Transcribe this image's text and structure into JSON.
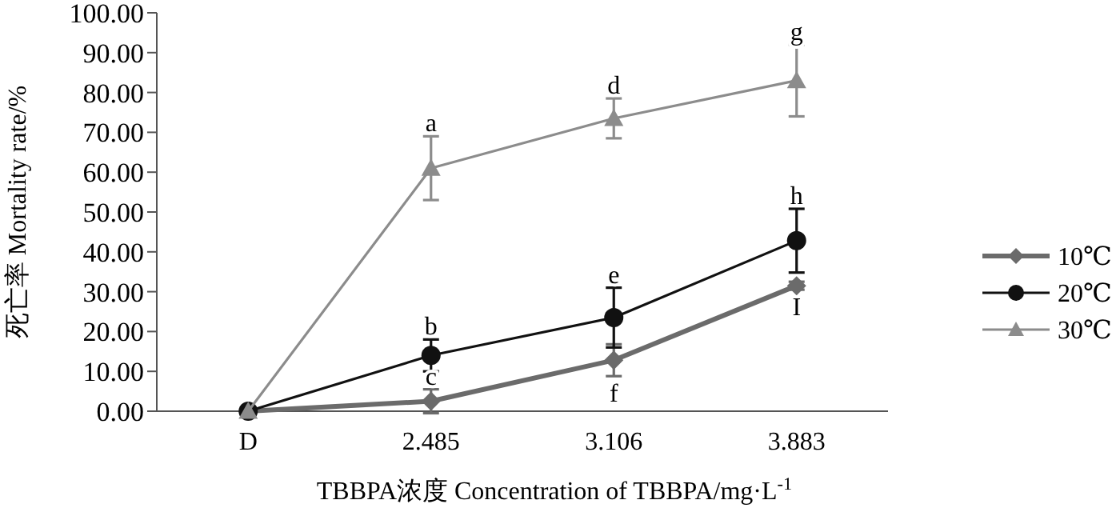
{
  "chart_data": {
    "type": "line",
    "xlabel": "TBBPA浓度 Concentration of TBBPA/mg·L$^{-1}$",
    "ylabel": "死亡率 Mortality rate/%",
    "categories": [
      "D",
      "2.485",
      "3.106",
      "3.883"
    ],
    "series": [
      {
        "name": "10℃",
        "color": "#6b6b6b",
        "marker": "diamond",
        "values": [
          0,
          2.5,
          12.8,
          31.5
        ],
        "errors": [
          null,
          3,
          4,
          1
        ]
      },
      {
        "name": "20℃",
        "color": "#111111",
        "marker": "circle",
        "values": [
          0,
          14,
          23.5,
          42.8
        ],
        "errors": [
          null,
          4,
          7.5,
          8
        ]
      },
      {
        "name": "30℃",
        "color": "#8c8c8c",
        "marker": "triangle",
        "values": [
          0,
          61,
          73.5,
          83
        ],
        "errors": [
          null,
          8,
          5,
          9
        ]
      }
    ],
    "ylim": [
      0,
      100
    ],
    "yticks": [
      {
        "value": 0,
        "label": "0.00"
      },
      {
        "value": 10,
        "label": "10.00"
      },
      {
        "value": 20,
        "label": "20.00"
      },
      {
        "value": 30,
        "label": "30.00"
      },
      {
        "value": 40,
        "label": "40.00"
      },
      {
        "value": 50,
        "label": "50.00"
      },
      {
        "value": 60,
        "label": "60.00"
      },
      {
        "value": 70,
        "label": "70.00"
      },
      {
        "value": 80,
        "label": "80.00"
      },
      {
        "value": 90,
        "label": "90.00"
      },
      {
        "value": 100,
        "label": "100.00"
      }
    ],
    "grid": false,
    "legend": "right",
    "annotations": [
      {
        "text": "a",
        "x": "2.485",
        "y": 69
      },
      {
        "text": "b",
        "x": "2.485",
        "y": 18
      },
      {
        "text": "c",
        "x": "2.485",
        "y": 5.5
      },
      {
        "text": "d",
        "x": "3.106",
        "y": 78.5
      },
      {
        "text": "e",
        "x": "3.106",
        "y": 31
      },
      {
        "text": "f",
        "x": "3.106",
        "y": 8.8
      },
      {
        "text": "g",
        "x": "3.883",
        "y": 92
      },
      {
        "text": "h",
        "x": "3.883",
        "y": 50.8
      },
      {
        "text": "I",
        "x": "3.883",
        "y": 30.5
      }
    ]
  }
}
